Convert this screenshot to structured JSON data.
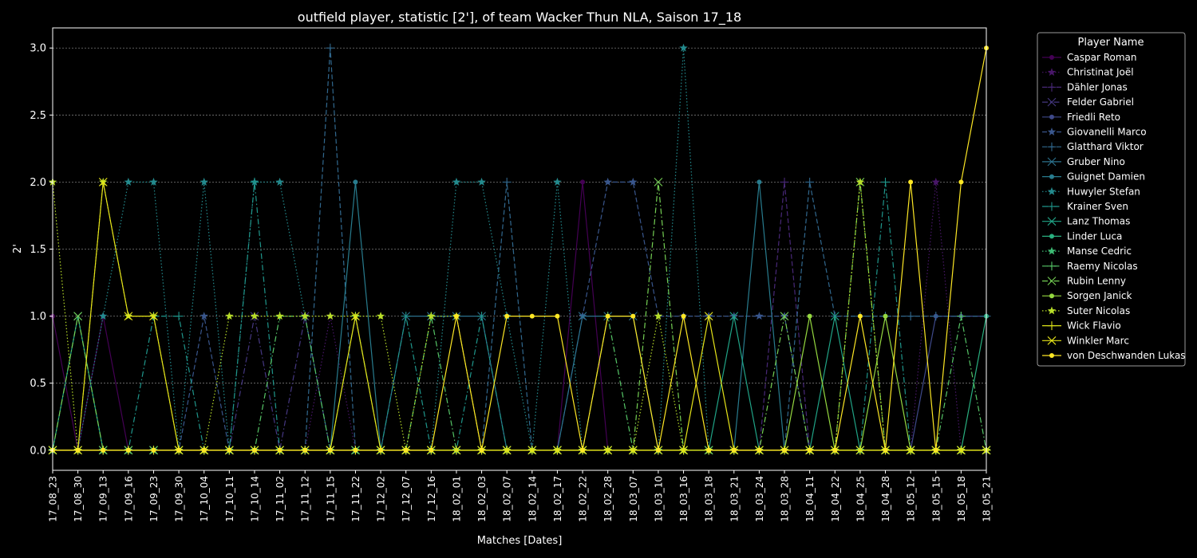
{
  "chart_data": {
    "type": "line",
    "title": "outfield player, statistic [2'], of team Wacker Thun NLA, Saison 17_18",
    "xlabel": "Matches [Dates]",
    "ylabel": "2'",
    "ylim": [
      -0.15,
      3.15
    ],
    "yticks": [
      0.0,
      0.5,
      1.0,
      1.5,
      2.0,
      2.5,
      3.0
    ],
    "ytick_labels": [
      "0.0",
      "0.5",
      "1.0",
      "1.5",
      "2.0",
      "2.5",
      "3.0"
    ],
    "grid": true,
    "legend_title": "Player Name",
    "legend_position": "outside-right",
    "categories": [
      "17_08_23",
      "17_08_30",
      "17_09_13",
      "17_09_16",
      "17_09_23",
      "17_09_30",
      "17_10_04",
      "17_10_11",
      "17_10_14",
      "17_11_02",
      "17_11_12",
      "17_11_15",
      "17_11_22",
      "17_12_02",
      "17_12_07",
      "17_12_16",
      "18_02_01",
      "18_02_03",
      "18_02_07",
      "18_02_14",
      "18_02_17",
      "18_02_22",
      "18_02_28",
      "18_03_07",
      "18_03_10",
      "18_03_16",
      "18_03_18",
      "18_03_21",
      "18_03_24",
      "18_03_28",
      "18_04_11",
      "18_04_22",
      "18_04_25",
      "18_04_28",
      "18_05_12",
      "18_05_15",
      "18_05_18",
      "18_05_21"
    ],
    "series": [
      {
        "name": "Caspar Roman",
        "color": "#440154",
        "marker": "circle",
        "dash": "solid",
        "values": [
          1,
          0,
          1,
          0,
          0,
          0,
          0,
          0,
          0,
          0,
          0,
          0,
          0,
          0,
          0,
          0,
          0,
          0,
          0,
          0,
          0,
          2,
          0,
          0,
          0,
          0,
          0,
          0,
          0,
          0,
          0,
          0,
          0,
          0,
          0,
          0,
          0,
          0
        ]
      },
      {
        "name": "Christinat Joël",
        "color": "#481668",
        "marker": "star",
        "dash": "dotted",
        "values": [
          0,
          0,
          0,
          0,
          0,
          0,
          0,
          0,
          0,
          0,
          0,
          1,
          0,
          0,
          0,
          0,
          0,
          0,
          0,
          0,
          0,
          0,
          0,
          0,
          0,
          0,
          0,
          0,
          0,
          0,
          0,
          0,
          0,
          0,
          0,
          2,
          0,
          0
        ]
      },
      {
        "name": "Dähler Jonas",
        "color": "#482878",
        "marker": "plus",
        "dash": "dashed",
        "values": [
          0,
          0,
          0,
          0,
          0,
          0,
          0,
          0,
          0,
          0,
          0,
          0,
          0,
          0,
          0,
          0,
          0,
          0,
          0,
          0,
          0,
          0,
          0,
          0,
          0,
          0,
          0,
          0,
          0,
          2,
          0,
          0,
          0,
          0,
          0,
          0,
          0,
          0
        ]
      },
      {
        "name": "Felder Gabriel",
        "color": "#453781",
        "marker": "x",
        "dash": "dashdot",
        "values": [
          0,
          0,
          0,
          0,
          0,
          0,
          0,
          0,
          1,
          0,
          1,
          0,
          0,
          0,
          0,
          0,
          0,
          0,
          0,
          0,
          0,
          0,
          0,
          0,
          0,
          0,
          0,
          0,
          0,
          0,
          0,
          0,
          0,
          0,
          0,
          0,
          0,
          0
        ]
      },
      {
        "name": "Friedli Reto",
        "color": "#3e4989",
        "marker": "circle",
        "dash": "solid",
        "values": [
          0,
          0,
          0,
          0,
          0,
          0,
          0,
          0,
          0,
          0,
          0,
          0,
          0,
          0,
          0,
          0,
          0,
          0,
          0,
          0,
          0,
          0,
          0,
          0,
          0,
          0,
          0,
          0,
          0,
          0,
          0,
          0,
          0,
          0,
          0,
          1,
          1,
          1
        ]
      },
      {
        "name": "Giovanelli Marco",
        "color": "#39568c",
        "marker": "star",
        "dash": "dashed",
        "values": [
          0,
          0,
          0,
          0,
          0,
          0,
          1,
          0,
          0,
          0,
          0,
          0,
          0,
          0,
          0,
          0,
          0,
          0,
          0,
          0,
          0,
          1,
          2,
          2,
          1,
          1,
          1,
          1,
          1,
          1,
          0,
          0,
          0,
          0,
          0,
          0,
          0,
          0
        ]
      },
      {
        "name": "Glatthard Viktor",
        "color": "#31688e",
        "marker": "plus",
        "dash": "dashed",
        "values": [
          0,
          0,
          0,
          0,
          0,
          0,
          0,
          0,
          0,
          0,
          0,
          3,
          0,
          0,
          0,
          0,
          0,
          0,
          2,
          0,
          0,
          0,
          0,
          0,
          0,
          0,
          0,
          0,
          0,
          0,
          2,
          1,
          1,
          1,
          1,
          1,
          1,
          1
        ]
      },
      {
        "name": "Gruber Nino",
        "color": "#2c728e",
        "marker": "x",
        "dash": "solid",
        "values": [
          0,
          0,
          0,
          0,
          0,
          0,
          0,
          0,
          0,
          0,
          0,
          0,
          0,
          0,
          1,
          1,
          1,
          1,
          0,
          0,
          0,
          1,
          1,
          1,
          0,
          0,
          0,
          0,
          0,
          0,
          0,
          0,
          0,
          0,
          0,
          0,
          0,
          0
        ]
      },
      {
        "name": "Guignet Damien",
        "color": "#287c8e",
        "marker": "circle",
        "dash": "solid",
        "values": [
          0,
          0,
          0,
          0,
          0,
          0,
          0,
          0,
          0,
          0,
          0,
          0,
          2,
          0,
          0,
          0,
          0,
          0,
          0,
          0,
          0,
          0,
          0,
          0,
          0,
          0,
          0,
          0,
          2,
          0,
          0,
          0,
          0,
          0,
          0,
          0,
          0,
          0
        ]
      },
      {
        "name": "Huwyler Stefan",
        "color": "#238a8d",
        "marker": "star",
        "dash": "dotted",
        "values": [
          0,
          0,
          1,
          2,
          2,
          0,
          2,
          0,
          2,
          2,
          1,
          0,
          0,
          0,
          0,
          0,
          2,
          2,
          1,
          0,
          2,
          0,
          0,
          0,
          0,
          3,
          0,
          0,
          0,
          0,
          0,
          0,
          0,
          0,
          0,
          0,
          0,
          0
        ]
      },
      {
        "name": "Krainer Sven",
        "color": "#1f968b",
        "marker": "plus",
        "dash": "dashdot",
        "values": [
          0,
          0,
          0,
          0,
          1,
          1,
          0,
          0,
          2,
          0,
          0,
          0,
          0,
          0,
          1,
          0,
          0,
          1,
          0,
          0,
          0,
          0,
          0,
          0,
          0,
          0,
          0,
          0,
          0,
          0,
          0,
          0,
          0,
          2,
          0,
          0,
          0,
          0
        ]
      },
      {
        "name": "Lanz Thomas",
        "color": "#20a386",
        "marker": "x",
        "dash": "solid",
        "values": [
          0,
          1,
          0,
          0,
          0,
          0,
          0,
          0,
          0,
          0,
          0,
          0,
          0,
          0,
          0,
          0,
          0,
          0,
          0,
          0,
          0,
          0,
          0,
          0,
          0,
          0,
          0,
          1,
          0,
          0,
          0,
          1,
          0,
          0,
          0,
          0,
          0,
          0
        ]
      },
      {
        "name": "Linder Luca",
        "color": "#29af7f",
        "marker": "circle",
        "dash": "solid",
        "values": [
          0,
          0,
          0,
          0,
          0,
          0,
          0,
          0,
          0,
          0,
          0,
          0,
          0,
          0,
          0,
          0,
          0,
          0,
          0,
          0,
          0,
          0,
          0,
          0,
          0,
          0,
          0,
          0,
          0,
          0,
          0,
          0,
          0,
          0,
          0,
          0,
          0,
          1
        ]
      },
      {
        "name": "Manse Cedric",
        "color": "#3dbc74",
        "marker": "star",
        "dash": "dotted",
        "values": [
          0,
          0,
          0,
          0,
          0,
          0,
          0,
          0,
          0,
          0,
          0,
          0,
          0,
          0,
          0,
          0,
          0,
          0,
          0,
          0,
          0,
          0,
          0,
          0,
          0,
          0,
          0,
          0,
          0,
          0,
          0,
          0,
          0,
          0,
          0,
          0,
          0,
          0
        ]
      },
      {
        "name": "Raemy Nicolas",
        "color": "#56c667",
        "marker": "plus",
        "dash": "dashdot",
        "values": [
          0,
          0,
          0,
          0,
          0,
          0,
          0,
          0,
          0,
          1,
          1,
          0,
          1,
          0,
          0,
          1,
          0,
          0,
          0,
          0,
          0,
          0,
          1,
          0,
          0,
          0,
          0,
          0,
          0,
          0,
          0,
          0,
          0,
          0,
          0,
          0,
          1,
          0
        ]
      },
      {
        "name": "Rubin Lenny",
        "color": "#75d054",
        "marker": "x",
        "dash": "dashdot",
        "values": [
          0,
          1,
          0,
          0,
          0,
          0,
          0,
          0,
          0,
          0,
          0,
          0,
          0,
          0,
          0,
          0,
          0,
          0,
          0,
          0,
          0,
          0,
          0,
          0,
          2,
          0,
          0,
          0,
          0,
          1,
          0,
          0,
          2,
          0,
          0,
          0,
          0,
          0
        ]
      },
      {
        "name": "Sorgen Janick",
        "color": "#95d840",
        "marker": "circle",
        "dash": "solid",
        "values": [
          0,
          0,
          0,
          0,
          0,
          0,
          0,
          0,
          0,
          0,
          0,
          0,
          0,
          0,
          0,
          0,
          0,
          0,
          0,
          0,
          0,
          0,
          0,
          0,
          0,
          0,
          0,
          0,
          0,
          0,
          1,
          0,
          0,
          1,
          0,
          0,
          0,
          0
        ]
      },
      {
        "name": "Suter Nicolas",
        "color": "#b8de29",
        "marker": "star",
        "dash": "dotted",
        "values": [
          2,
          0,
          2,
          1,
          1,
          0,
          0,
          1,
          1,
          1,
          1,
          1,
          1,
          1,
          0,
          1,
          1,
          0,
          0,
          0,
          0,
          0,
          0,
          0,
          1,
          0,
          0,
          0,
          0,
          0,
          0,
          0,
          2,
          0,
          0,
          0,
          0,
          0
        ]
      },
      {
        "name": "Wick Flavio",
        "color": "#dde318",
        "marker": "plus",
        "dash": "solid",
        "values": [
          0,
          0,
          0,
          0,
          0,
          0,
          0,
          0,
          0,
          0,
          0,
          0,
          0,
          0,
          0,
          0,
          0,
          0,
          0,
          0,
          0,
          0,
          0,
          0,
          0,
          0,
          0,
          0,
          0,
          0,
          0,
          0,
          0,
          0,
          0,
          0,
          0,
          0
        ]
      },
      {
        "name": "Winkler Marc",
        "color": "#e6e419",
        "marker": "x",
        "dash": "solid",
        "values": [
          0,
          0,
          2,
          1,
          1,
          0,
          0,
          0,
          0,
          0,
          0,
          0,
          1,
          0,
          0,
          0,
          0,
          0,
          0,
          0,
          0,
          0,
          0,
          0,
          0,
          0,
          1,
          0,
          0,
          0,
          0,
          0,
          0,
          0,
          0,
          0,
          0,
          0
        ]
      },
      {
        "name": "von Deschwanden Lukas",
        "color": "#fde725",
        "marker": "circle",
        "dash": "solid",
        "values": [
          0,
          0,
          0,
          0,
          0,
          0,
          0,
          0,
          0,
          0,
          0,
          0,
          0,
          0,
          0,
          0,
          1,
          0,
          1,
          1,
          1,
          0,
          1,
          1,
          0,
          1,
          0,
          0,
          0,
          0,
          0,
          0,
          1,
          0,
          2,
          0,
          2,
          3
        ]
      }
    ]
  }
}
